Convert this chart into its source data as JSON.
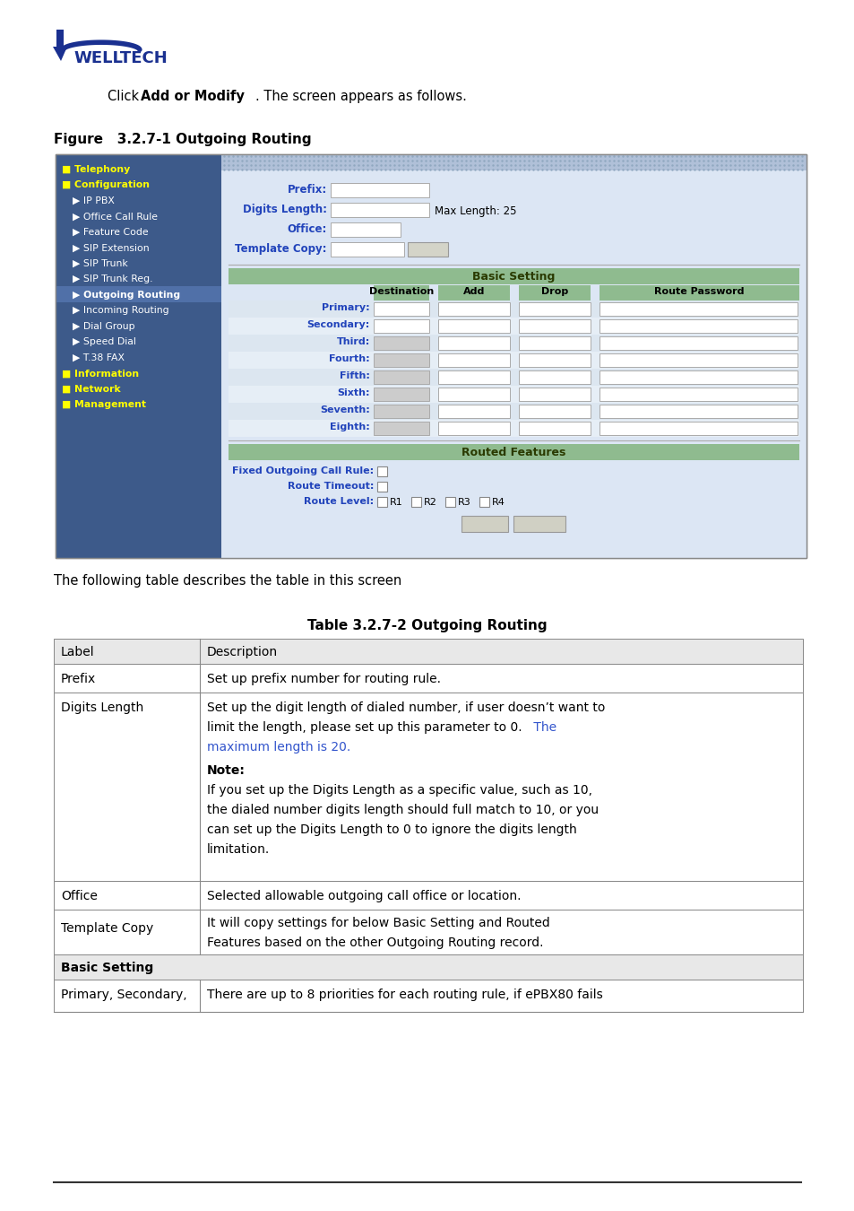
{
  "bg_color": "#ffffff",
  "figure_label": "Figure   3.2.7-1 Outgoing Routing",
  "table_title": "Table 3.2.7-2 Outgoing Routing",
  "below_figure_text": "The following table describes the table in this screen",
  "sidebar_bg": "#4a6080",
  "sidebar_items": [
    {
      "text": "Telephony",
      "color": "#ffff00",
      "bold": true,
      "indent": 0,
      "prefix": "■"
    },
    {
      "text": "Configuration",
      "color": "#ffff00",
      "bold": true,
      "indent": 0,
      "prefix": "■"
    },
    {
      "text": "IP PBX",
      "color": "#ffffff",
      "bold": false,
      "indent": 1,
      "prefix": "▶"
    },
    {
      "text": "Office Call Rule",
      "color": "#ffffff",
      "bold": false,
      "indent": 1,
      "prefix": "▶"
    },
    {
      "text": "Feature Code",
      "color": "#ffffff",
      "bold": false,
      "indent": 1,
      "prefix": "▶"
    },
    {
      "text": "SIP Extension",
      "color": "#ffffff",
      "bold": false,
      "indent": 1,
      "prefix": "▶"
    },
    {
      "text": "SIP Trunk",
      "color": "#ffffff",
      "bold": false,
      "indent": 1,
      "prefix": "▶"
    },
    {
      "text": "SIP Trunk Reg.",
      "color": "#ffffff",
      "bold": false,
      "indent": 1,
      "prefix": "▶"
    },
    {
      "text": "Outgoing Routing",
      "color": "#ffffff",
      "bold": true,
      "indent": 1,
      "prefix": "▶",
      "active": true
    },
    {
      "text": "Incoming Routing",
      "color": "#ffffff",
      "bold": false,
      "indent": 1,
      "prefix": "▶"
    },
    {
      "text": "Dial Group",
      "color": "#ffffff",
      "bold": false,
      "indent": 1,
      "prefix": "▶"
    },
    {
      "text": "Speed Dial",
      "color": "#ffffff",
      "bold": false,
      "indent": 1,
      "prefix": "▶"
    },
    {
      "text": "T.38 FAX",
      "color": "#ffffff",
      "bold": false,
      "indent": 1,
      "prefix": "▶"
    },
    {
      "text": "Information",
      "color": "#ffff00",
      "bold": true,
      "indent": 0,
      "prefix": "■"
    },
    {
      "text": "Network",
      "color": "#ffff00",
      "bold": true,
      "indent": 0,
      "prefix": "■"
    },
    {
      "text": "Management",
      "color": "#ffff00",
      "bold": true,
      "indent": 0,
      "prefix": "■"
    }
  ],
  "row_labels": [
    "Primary:",
    "Secondary:",
    "Third:",
    "Fourth:",
    "Fifth:",
    "Sixth:",
    "Seventh:",
    "Eighth:"
  ],
  "header_green": "#8fbb8f",
  "table_header_bg": "#e8e8e8",
  "lbl_color": "#2244bb",
  "blue_link": "#3355cc"
}
